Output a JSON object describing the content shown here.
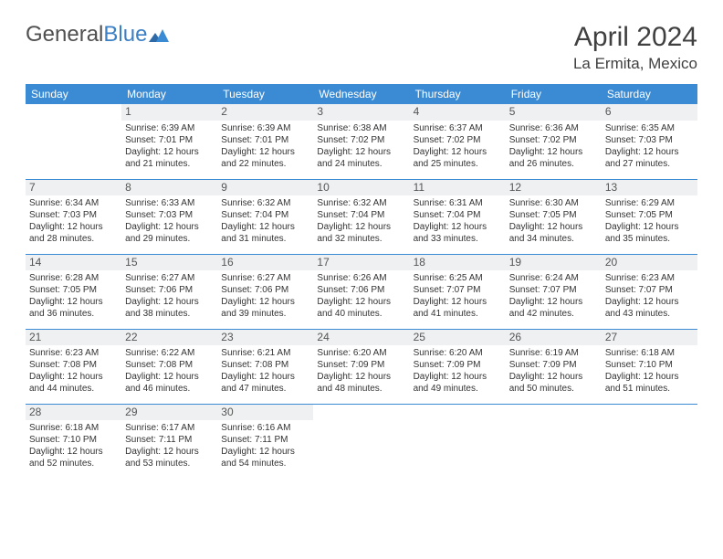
{
  "brand": {
    "name_gray": "General",
    "name_blue": "Blue"
  },
  "title": "April 2024",
  "location": "La Ermita, Mexico",
  "colors": {
    "header_bg": "#3b8bd4",
    "header_fg": "#ffffff",
    "row_border": "#3b8bd4",
    "daynum_bg": "#eef0f1",
    "text": "#333333"
  },
  "weekdays": [
    "Sunday",
    "Monday",
    "Tuesday",
    "Wednesday",
    "Thursday",
    "Friday",
    "Saturday"
  ],
  "weeks": [
    [
      {
        "day": "",
        "lines": []
      },
      {
        "day": "1",
        "lines": [
          "Sunrise: 6:39 AM",
          "Sunset: 7:01 PM",
          "Daylight: 12 hours",
          "and 21 minutes."
        ]
      },
      {
        "day": "2",
        "lines": [
          "Sunrise: 6:39 AM",
          "Sunset: 7:01 PM",
          "Daylight: 12 hours",
          "and 22 minutes."
        ]
      },
      {
        "day": "3",
        "lines": [
          "Sunrise: 6:38 AM",
          "Sunset: 7:02 PM",
          "Daylight: 12 hours",
          "and 24 minutes."
        ]
      },
      {
        "day": "4",
        "lines": [
          "Sunrise: 6:37 AM",
          "Sunset: 7:02 PM",
          "Daylight: 12 hours",
          "and 25 minutes."
        ]
      },
      {
        "day": "5",
        "lines": [
          "Sunrise: 6:36 AM",
          "Sunset: 7:02 PM",
          "Daylight: 12 hours",
          "and 26 minutes."
        ]
      },
      {
        "day": "6",
        "lines": [
          "Sunrise: 6:35 AM",
          "Sunset: 7:03 PM",
          "Daylight: 12 hours",
          "and 27 minutes."
        ]
      }
    ],
    [
      {
        "day": "7",
        "lines": [
          "Sunrise: 6:34 AM",
          "Sunset: 7:03 PM",
          "Daylight: 12 hours",
          "and 28 minutes."
        ]
      },
      {
        "day": "8",
        "lines": [
          "Sunrise: 6:33 AM",
          "Sunset: 7:03 PM",
          "Daylight: 12 hours",
          "and 29 minutes."
        ]
      },
      {
        "day": "9",
        "lines": [
          "Sunrise: 6:32 AM",
          "Sunset: 7:04 PM",
          "Daylight: 12 hours",
          "and 31 minutes."
        ]
      },
      {
        "day": "10",
        "lines": [
          "Sunrise: 6:32 AM",
          "Sunset: 7:04 PM",
          "Daylight: 12 hours",
          "and 32 minutes."
        ]
      },
      {
        "day": "11",
        "lines": [
          "Sunrise: 6:31 AM",
          "Sunset: 7:04 PM",
          "Daylight: 12 hours",
          "and 33 minutes."
        ]
      },
      {
        "day": "12",
        "lines": [
          "Sunrise: 6:30 AM",
          "Sunset: 7:05 PM",
          "Daylight: 12 hours",
          "and 34 minutes."
        ]
      },
      {
        "day": "13",
        "lines": [
          "Sunrise: 6:29 AM",
          "Sunset: 7:05 PM",
          "Daylight: 12 hours",
          "and 35 minutes."
        ]
      }
    ],
    [
      {
        "day": "14",
        "lines": [
          "Sunrise: 6:28 AM",
          "Sunset: 7:05 PM",
          "Daylight: 12 hours",
          "and 36 minutes."
        ]
      },
      {
        "day": "15",
        "lines": [
          "Sunrise: 6:27 AM",
          "Sunset: 7:06 PM",
          "Daylight: 12 hours",
          "and 38 minutes."
        ]
      },
      {
        "day": "16",
        "lines": [
          "Sunrise: 6:27 AM",
          "Sunset: 7:06 PM",
          "Daylight: 12 hours",
          "and 39 minutes."
        ]
      },
      {
        "day": "17",
        "lines": [
          "Sunrise: 6:26 AM",
          "Sunset: 7:06 PM",
          "Daylight: 12 hours",
          "and 40 minutes."
        ]
      },
      {
        "day": "18",
        "lines": [
          "Sunrise: 6:25 AM",
          "Sunset: 7:07 PM",
          "Daylight: 12 hours",
          "and 41 minutes."
        ]
      },
      {
        "day": "19",
        "lines": [
          "Sunrise: 6:24 AM",
          "Sunset: 7:07 PM",
          "Daylight: 12 hours",
          "and 42 minutes."
        ]
      },
      {
        "day": "20",
        "lines": [
          "Sunrise: 6:23 AM",
          "Sunset: 7:07 PM",
          "Daylight: 12 hours",
          "and 43 minutes."
        ]
      }
    ],
    [
      {
        "day": "21",
        "lines": [
          "Sunrise: 6:23 AM",
          "Sunset: 7:08 PM",
          "Daylight: 12 hours",
          "and 44 minutes."
        ]
      },
      {
        "day": "22",
        "lines": [
          "Sunrise: 6:22 AM",
          "Sunset: 7:08 PM",
          "Daylight: 12 hours",
          "and 46 minutes."
        ]
      },
      {
        "day": "23",
        "lines": [
          "Sunrise: 6:21 AM",
          "Sunset: 7:08 PM",
          "Daylight: 12 hours",
          "and 47 minutes."
        ]
      },
      {
        "day": "24",
        "lines": [
          "Sunrise: 6:20 AM",
          "Sunset: 7:09 PM",
          "Daylight: 12 hours",
          "and 48 minutes."
        ]
      },
      {
        "day": "25",
        "lines": [
          "Sunrise: 6:20 AM",
          "Sunset: 7:09 PM",
          "Daylight: 12 hours",
          "and 49 minutes."
        ]
      },
      {
        "day": "26",
        "lines": [
          "Sunrise: 6:19 AM",
          "Sunset: 7:09 PM",
          "Daylight: 12 hours",
          "and 50 minutes."
        ]
      },
      {
        "day": "27",
        "lines": [
          "Sunrise: 6:18 AM",
          "Sunset: 7:10 PM",
          "Daylight: 12 hours",
          "and 51 minutes."
        ]
      }
    ],
    [
      {
        "day": "28",
        "lines": [
          "Sunrise: 6:18 AM",
          "Sunset: 7:10 PM",
          "Daylight: 12 hours",
          "and 52 minutes."
        ]
      },
      {
        "day": "29",
        "lines": [
          "Sunrise: 6:17 AM",
          "Sunset: 7:11 PM",
          "Daylight: 12 hours",
          "and 53 minutes."
        ]
      },
      {
        "day": "30",
        "lines": [
          "Sunrise: 6:16 AM",
          "Sunset: 7:11 PM",
          "Daylight: 12 hours",
          "and 54 minutes."
        ]
      },
      {
        "day": "",
        "lines": []
      },
      {
        "day": "",
        "lines": []
      },
      {
        "day": "",
        "lines": []
      },
      {
        "day": "",
        "lines": []
      }
    ]
  ]
}
